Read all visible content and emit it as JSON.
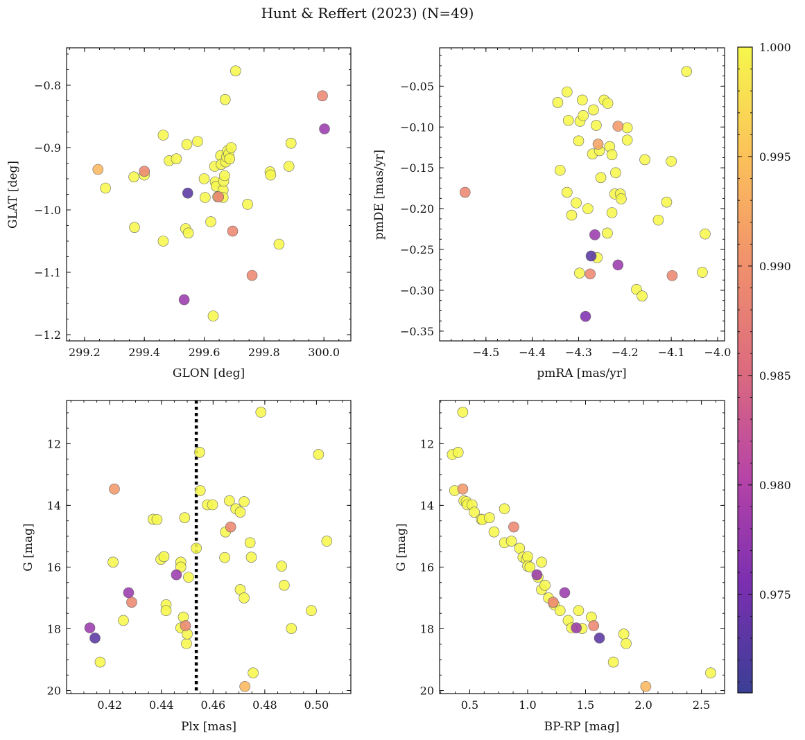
{
  "figure": {
    "title": "Hunt & Reffert (2023) (N=49)"
  },
  "colorbar": {
    "min": 0.9705,
    "max": 1.0,
    "ticks": [
      1.0,
      0.995,
      0.99,
      0.985,
      0.98,
      0.975
    ],
    "tick_labels": [
      "1.000",
      "0.995",
      "0.990",
      "0.985",
      "0.980",
      "0.975"
    ],
    "colormap": "plasma"
  },
  "chart_data": [
    {
      "type": "scatter",
      "id": "glon-glat",
      "xlabel": "GLON [deg]",
      "ylabel": "GLAT [deg]",
      "xlim": [
        299.14,
        300.09
      ],
      "ylim": [
        -1.21,
        -0.74
      ],
      "y_inverted": false,
      "xticks": [
        299.2,
        299.4,
        299.6,
        299.8,
        300.0
      ],
      "xtick_labels": [
        "299.2",
        "299.4",
        "299.6",
        "299.8",
        "300.0"
      ],
      "yticks": [
        -0.8,
        -0.9,
        -1.0,
        -1.1,
        -1.2
      ],
      "ytick_labels": [
        "−0.8",
        "−0.9",
        "−1.0",
        "−1.1",
        "−1.2"
      ],
      "points": [
        [
          299.245,
          -0.935,
          0.994
        ],
        [
          299.27,
          -0.965,
          1.0
        ],
        [
          299.365,
          -0.947,
          1.0
        ],
        [
          299.367,
          -1.028,
          1.0
        ],
        [
          299.4,
          -0.938,
          0.989
        ],
        [
          299.4,
          -0.944,
          1.0
        ],
        [
          299.463,
          -0.88,
          1.0
        ],
        [
          299.463,
          -1.05,
          1.0
        ],
        [
          299.483,
          -0.921,
          1.0
        ],
        [
          299.507,
          -0.918,
          1.0
        ],
        [
          299.533,
          -1.144,
          0.978
        ],
        [
          299.538,
          -1.03,
          1.0
        ],
        [
          299.542,
          -0.895,
          1.0
        ],
        [
          299.547,
          -1.037,
          1.0
        ],
        [
          299.545,
          -0.973,
          0.973
        ],
        [
          299.578,
          -0.89,
          1.0
        ],
        [
          299.6,
          -0.95,
          1.0
        ],
        [
          299.603,
          -0.98,
          1.0
        ],
        [
          299.622,
          -1.019,
          1.0
        ],
        [
          299.63,
          -1.17,
          1.0
        ],
        [
          299.635,
          -0.93,
          1.0
        ],
        [
          299.637,
          -0.955,
          1.0
        ],
        [
          299.64,
          -0.962,
          1.0
        ],
        [
          299.645,
          -0.979,
          1.0
        ],
        [
          299.648,
          -0.979,
          0.988
        ],
        [
          299.655,
          -0.913,
          1.0
        ],
        [
          299.657,
          -0.927,
          1.0
        ],
        [
          299.663,
          -0.968,
          1.0
        ],
        [
          299.663,
          -0.98,
          1.0
        ],
        [
          299.665,
          -0.954,
          1.0
        ],
        [
          299.668,
          -0.945,
          1.0
        ],
        [
          299.67,
          -0.823,
          1.0
        ],
        [
          299.672,
          -0.923,
          1.0
        ],
        [
          299.675,
          -0.915,
          1.0
        ],
        [
          299.678,
          -0.905,
          1.0
        ],
        [
          299.682,
          -0.91,
          1.0
        ],
        [
          299.685,
          -0.918,
          1.0
        ],
        [
          299.69,
          -0.9,
          1.0
        ],
        [
          299.695,
          -1.034,
          0.989
        ],
        [
          299.705,
          -0.777,
          1.0
        ],
        [
          299.745,
          -0.991,
          1.0
        ],
        [
          299.76,
          -1.105,
          0.989
        ],
        [
          299.82,
          -0.939,
          1.0
        ],
        [
          299.822,
          -0.944,
          1.0
        ],
        [
          299.85,
          -1.055,
          1.0
        ],
        [
          299.883,
          -0.93,
          1.0
        ],
        [
          299.89,
          -0.893,
          1.0
        ],
        [
          299.995,
          -0.817,
          0.989
        ],
        [
          300.002,
          -0.87,
          0.978
        ]
      ]
    },
    {
      "type": "scatter",
      "id": "pmra-pmde",
      "xlabel": "pmRA [mas/yr]",
      "ylabel": "pmDE [mas/yr]",
      "xlim": [
        -4.6,
        -3.985
      ],
      "ylim": [
        -0.362,
        -0.003
      ],
      "y_inverted": false,
      "xticks": [
        -4.5,
        -4.4,
        -4.3,
        -4.2,
        -4.1,
        -4.0
      ],
      "xtick_labels": [
        "−4.5",
        "−4.4",
        "−4.3",
        "−4.2",
        "−4.1",
        "−4.0"
      ],
      "yticks": [
        -0.05,
        -0.1,
        -0.15,
        -0.2,
        -0.25,
        -0.3,
        -0.35
      ],
      "ytick_labels": [
        "−0.05",
        "−0.10",
        "−0.15",
        "−0.20",
        "−0.25",
        "−0.30",
        "−0.35"
      ],
      "points": [
        [
          -4.545,
          -0.18,
          0.989
        ],
        [
          -4.345,
          -0.07,
          1.0
        ],
        [
          -4.34,
          -0.153,
          1.0
        ],
        [
          -4.325,
          -0.057,
          1.0
        ],
        [
          -4.325,
          -0.18,
          1.0
        ],
        [
          -4.322,
          -0.092,
          1.0
        ],
        [
          -4.315,
          -0.208,
          1.0
        ],
        [
          -4.305,
          -0.193,
          1.0
        ],
        [
          -4.3,
          -0.117,
          1.0
        ],
        [
          -4.298,
          -0.279,
          1.0
        ],
        [
          -4.297,
          -0.093,
          1.0
        ],
        [
          -4.292,
          -0.067,
          1.0
        ],
        [
          -4.29,
          -0.086,
          1.0
        ],
        [
          -4.285,
          -0.332,
          0.976
        ],
        [
          -4.28,
          -0.2,
          1.0
        ],
        [
          -4.275,
          -0.28,
          0.989
        ],
        [
          -4.27,
          -0.133,
          1.0
        ],
        [
          -4.273,
          -0.258,
          0.973
        ],
        [
          -4.268,
          -0.079,
          1.0
        ],
        [
          -4.265,
          -0.232,
          0.978
        ],
        [
          -4.262,
          -0.098,
          1.0
        ],
        [
          -4.26,
          -0.26,
          1.0
        ],
        [
          -4.258,
          -0.121,
          0.992
        ],
        [
          -4.255,
          -0.129,
          1.0
        ],
        [
          -4.252,
          -0.162,
          1.0
        ],
        [
          -4.245,
          -0.067,
          1.0
        ],
        [
          -4.238,
          -0.23,
          1.0
        ],
        [
          -4.237,
          -0.071,
          1.0
        ],
        [
          -4.233,
          -0.124,
          1.0
        ],
        [
          -4.228,
          -0.205,
          1.0
        ],
        [
          -4.228,
          -0.134,
          1.0
        ],
        [
          -4.222,
          -0.182,
          1.0
        ],
        [
          -4.22,
          -0.156,
          1.0
        ],
        [
          -4.215,
          -0.099,
          0.991
        ],
        [
          -4.215,
          -0.269,
          0.978
        ],
        [
          -4.21,
          -0.182,
          1.0
        ],
        [
          -4.208,
          -0.188,
          1.0
        ],
        [
          -4.195,
          -0.101,
          1.0
        ],
        [
          -4.195,
          -0.116,
          1.0
        ],
        [
          -4.175,
          -0.299,
          1.0
        ],
        [
          -4.163,
          -0.307,
          1.0
        ],
        [
          -4.157,
          -0.14,
          1.0
        ],
        [
          -4.128,
          -0.214,
          1.0
        ],
        [
          -4.11,
          -0.192,
          1.0
        ],
        [
          -4.1,
          -0.142,
          1.0
        ],
        [
          -4.098,
          -0.282,
          0.989
        ],
        [
          -4.067,
          -0.032,
          1.0
        ],
        [
          -4.033,
          -0.278,
          1.0
        ],
        [
          -4.027,
          -0.231,
          1.0
        ]
      ]
    },
    {
      "type": "scatter",
      "id": "plx-g",
      "xlabel": "Plx [mas]",
      "ylabel": "G [mag]",
      "xlim": [
        0.4033,
        0.5133
      ],
      "ylim": [
        20.1,
        10.6
      ],
      "y_inverted": true,
      "vline": 0.4535,
      "xticks": [
        0.42,
        0.44,
        0.46,
        0.48,
        0.5
      ],
      "xtick_labels": [
        "0.42",
        "0.44",
        "0.46",
        "0.48",
        "0.50"
      ],
      "yticks": [
        12,
        14,
        16,
        18,
        20
      ],
      "ytick_labels": [
        "12",
        "14",
        "16",
        "18",
        "20"
      ],
      "points": [
        [
          0.4123,
          17.97,
          0.978
        ],
        [
          0.4143,
          18.3,
          0.973
        ],
        [
          0.4163,
          19.08,
          1.0
        ],
        [
          0.4213,
          15.84,
          1.0
        ],
        [
          0.4218,
          13.47,
          0.991
        ],
        [
          0.4253,
          17.73,
          1.0
        ],
        [
          0.4273,
          16.83,
          0.978
        ],
        [
          0.4285,
          17.14,
          0.989
        ],
        [
          0.4368,
          14.45,
          1.0
        ],
        [
          0.4383,
          14.46,
          1.0
        ],
        [
          0.4398,
          15.75,
          1.0
        ],
        [
          0.441,
          15.66,
          1.0
        ],
        [
          0.4418,
          17.22,
          1.0
        ],
        [
          0.4418,
          17.41,
          1.0
        ],
        [
          0.4458,
          16.25,
          0.978
        ],
        [
          0.4475,
          15.84,
          1.0
        ],
        [
          0.4475,
          16.0,
          1.0
        ],
        [
          0.4475,
          17.97,
          1.0
        ],
        [
          0.4485,
          17.62,
          1.0
        ],
        [
          0.449,
          14.4,
          1.0
        ],
        [
          0.4493,
          17.9,
          0.989
        ],
        [
          0.4497,
          18.48,
          1.0
        ],
        [
          0.45,
          18.17,
          1.0
        ],
        [
          0.4505,
          16.33,
          1.0
        ],
        [
          0.4535,
          15.39,
          1.0
        ],
        [
          0.4548,
          12.28,
          1.0
        ],
        [
          0.455,
          13.52,
          1.0
        ],
        [
          0.4578,
          13.98,
          1.0
        ],
        [
          0.4598,
          13.98,
          1.0
        ],
        [
          0.4645,
          15.69,
          1.0
        ],
        [
          0.4648,
          14.86,
          1.0
        ],
        [
          0.4663,
          13.85,
          1.0
        ],
        [
          0.4668,
          14.7,
          0.989
        ],
        [
          0.4688,
          14.11,
          1.0
        ],
        [
          0.4705,
          14.22,
          1.0
        ],
        [
          0.4705,
          16.73,
          1.0
        ],
        [
          0.472,
          13.88,
          1.0
        ],
        [
          0.472,
          17.0,
          1.0
        ],
        [
          0.4723,
          19.87,
          0.994
        ],
        [
          0.4743,
          15.21,
          1.0
        ],
        [
          0.4748,
          15.68,
          1.0
        ],
        [
          0.4755,
          19.43,
          1.0
        ],
        [
          0.4785,
          10.98,
          1.0
        ],
        [
          0.4865,
          15.97,
          1.0
        ],
        [
          0.4875,
          16.59,
          1.0
        ],
        [
          0.4903,
          17.99,
          1.0
        ],
        [
          0.498,
          17.41,
          1.0
        ],
        [
          0.5008,
          12.35,
          1.0
        ],
        [
          0.504,
          15.16,
          1.0
        ]
      ]
    },
    {
      "type": "scatter",
      "id": "bprp-g",
      "xlabel": "BP-RP [mag]",
      "ylabel": "G [mag]",
      "xlim": [
        0.24,
        2.7
      ],
      "ylim": [
        20.1,
        10.6
      ],
      "y_inverted": true,
      "xticks": [
        0.5,
        1.0,
        1.5,
        2.0,
        2.5
      ],
      "xtick_labels": [
        "0.5",
        "1.0",
        "1.5",
        "2.0",
        "2.5"
      ],
      "yticks": [
        12,
        14,
        16,
        18,
        20
      ],
      "ytick_labels": [
        "12",
        "14",
        "16",
        "18",
        "20"
      ],
      "points": [
        [
          0.35,
          12.35,
          1.0
        ],
        [
          0.4,
          12.28,
          1.0
        ],
        [
          0.44,
          10.98,
          1.0
        ],
        [
          0.44,
          13.47,
          0.991
        ],
        [
          0.37,
          13.52,
          1.0
        ],
        [
          0.45,
          13.85,
          1.0
        ],
        [
          0.47,
          13.88,
          1.0
        ],
        [
          0.48,
          13.98,
          1.0
        ],
        [
          0.52,
          13.98,
          1.0
        ],
        [
          0.54,
          14.22,
          1.0
        ],
        [
          0.6,
          14.45,
          1.0
        ],
        [
          0.61,
          14.46,
          1.0
        ],
        [
          0.67,
          14.4,
          1.0
        ],
        [
          0.71,
          14.86,
          1.0
        ],
        [
          0.8,
          14.11,
          1.0
        ],
        [
          0.8,
          15.21,
          1.0
        ],
        [
          0.86,
          15.16,
          1.0
        ],
        [
          0.88,
          14.7,
          0.989
        ],
        [
          0.93,
          15.39,
          1.0
        ],
        [
          0.96,
          15.68,
          1.0
        ],
        [
          0.99,
          15.75,
          1.0
        ],
        [
          1.0,
          15.66,
          1.0
        ],
        [
          1.0,
          15.97,
          1.0
        ],
        [
          1.02,
          16.0,
          1.0
        ],
        [
          1.08,
          16.25,
          0.978
        ],
        [
          1.09,
          16.33,
          1.0
        ],
        [
          1.12,
          15.84,
          1.0
        ],
        [
          1.12,
          16.73,
          1.0
        ],
        [
          1.15,
          16.59,
          1.0
        ],
        [
          1.18,
          17.0,
          1.0
        ],
        [
          1.22,
          17.14,
          0.989
        ],
        [
          1.23,
          17.22,
          1.0
        ],
        [
          1.28,
          17.41,
          1.0
        ],
        [
          1.32,
          16.83,
          0.978
        ],
        [
          1.35,
          17.73,
          1.0
        ],
        [
          1.38,
          17.97,
          1.0
        ],
        [
          1.42,
          17.97,
          0.978
        ],
        [
          1.44,
          17.41,
          1.0
        ],
        [
          1.47,
          17.99,
          1.0
        ],
        [
          1.55,
          17.62,
          1.0
        ],
        [
          1.57,
          17.9,
          0.989
        ],
        [
          1.62,
          18.3,
          0.973
        ],
        [
          1.74,
          19.08,
          1.0
        ],
        [
          1.83,
          18.17,
          1.0
        ],
        [
          1.85,
          18.48,
          1.0
        ],
        [
          2.02,
          19.87,
          0.994
        ],
        [
          2.58,
          19.43,
          1.0
        ]
      ]
    }
  ]
}
